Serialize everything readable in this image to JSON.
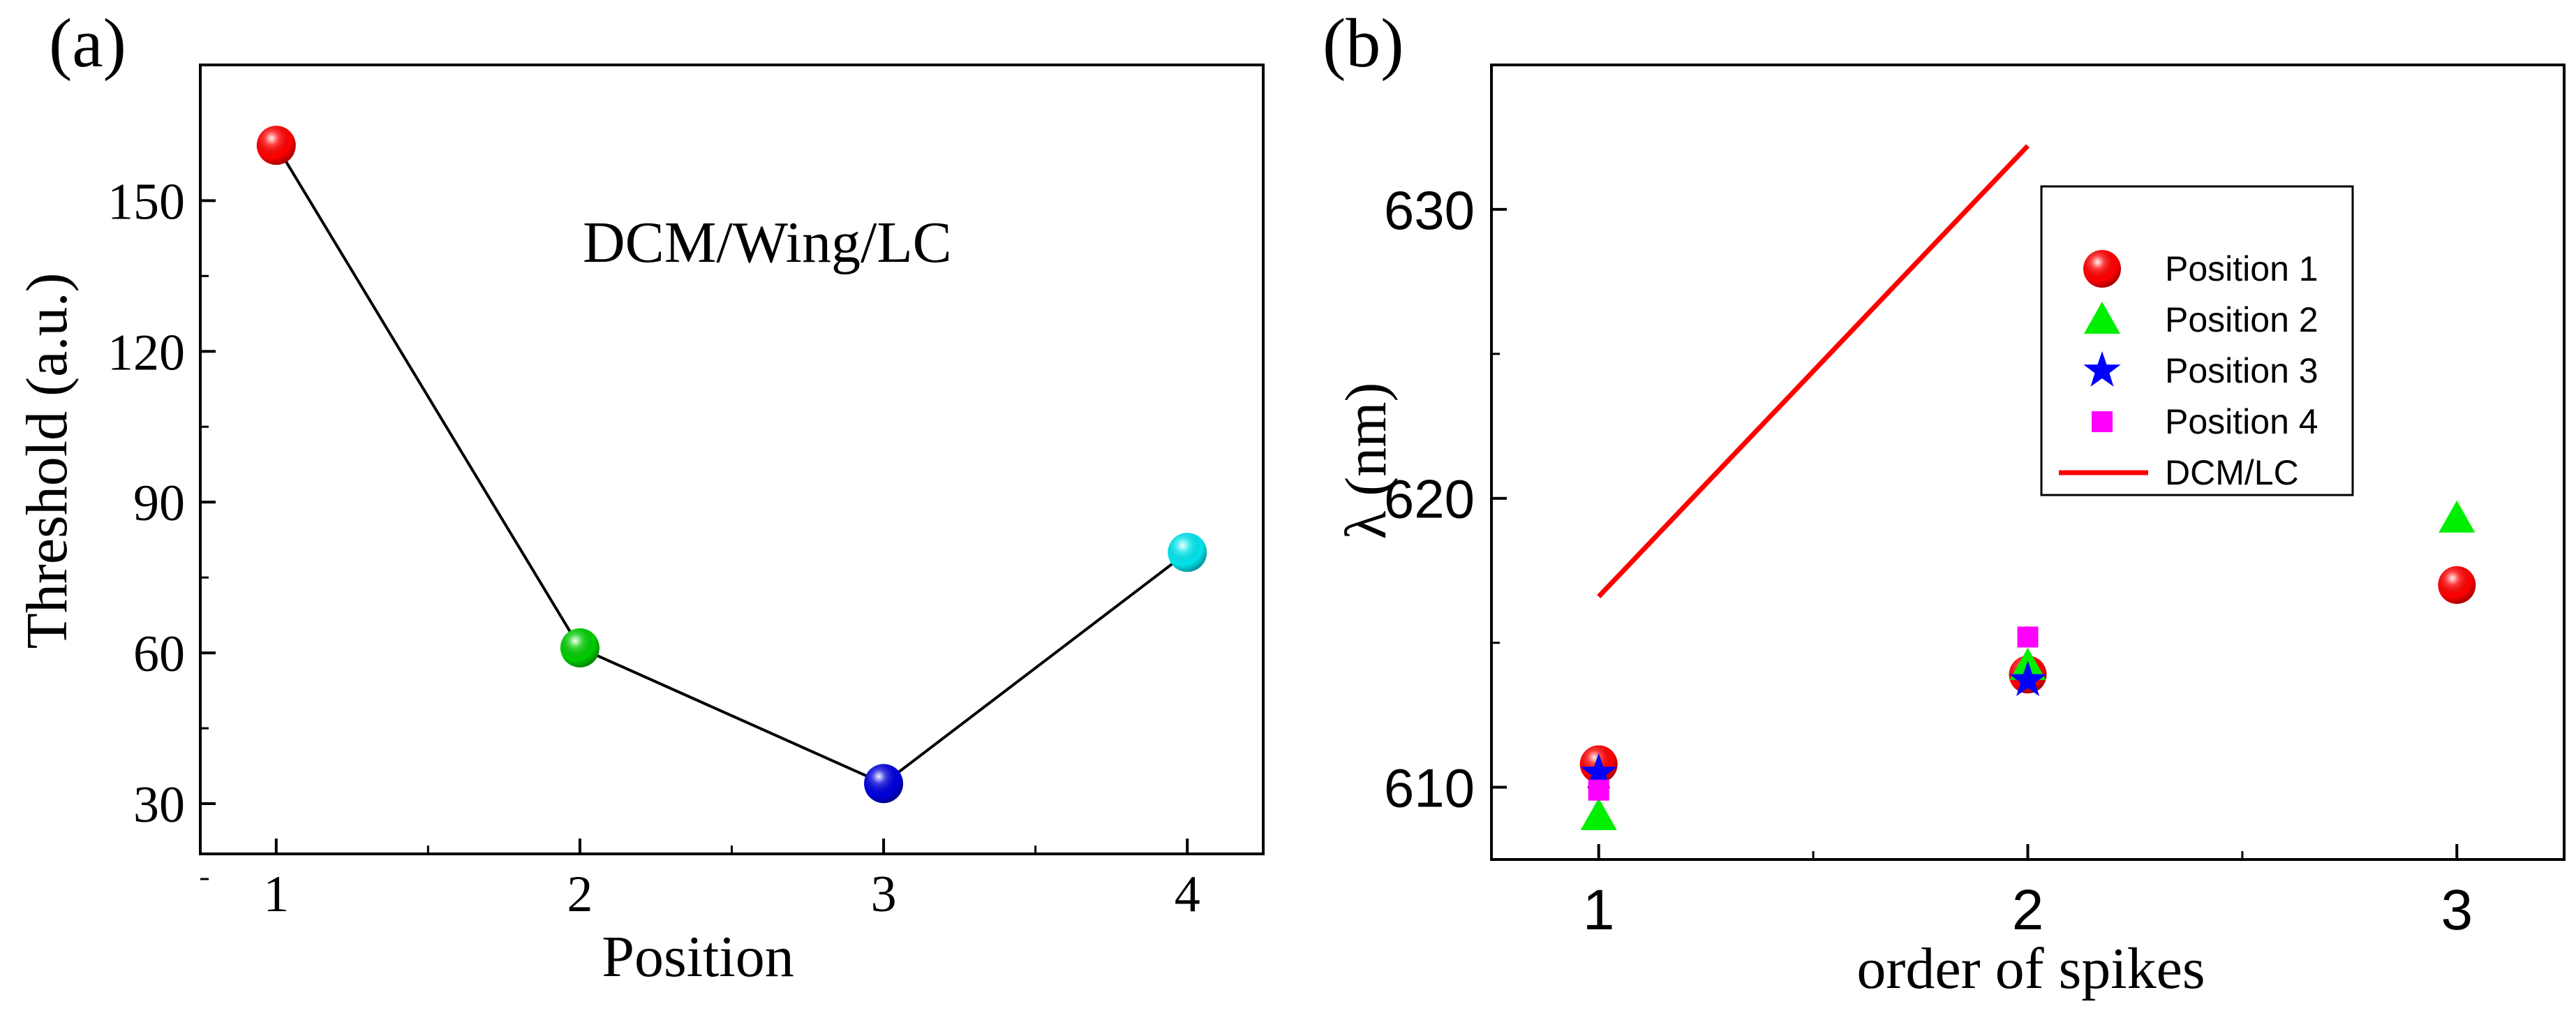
{
  "chart_data": [
    {
      "panel_label": "(a)",
      "type": "line",
      "xlabel": "Position",
      "ylabel": "Threshold (a.u.)",
      "annotation": "DCM/Wing/LC",
      "xlim": [
        0.75,
        4.25
      ],
      "ylim": [
        20,
        177
      ],
      "x_ticks": [
        1,
        2,
        3,
        4
      ],
      "x_tick_labels": [
        "1",
        "2",
        "3",
        "4"
      ],
      "y_ticks": [
        30,
        60,
        90,
        120,
        150
      ],
      "y_tick_labels": [
        "30",
        "60",
        "90",
        "120",
        "150"
      ],
      "x": [
        1,
        2,
        3,
        4
      ],
      "values": [
        161,
        61,
        34,
        80
      ],
      "point_colors": [
        "#ff0000",
        "#00cc00",
        "#0000dd",
        "#00e5ee"
      ],
      "line_color": "#000000",
      "grid": false
    },
    {
      "panel_label": "(b)",
      "type": "scatter",
      "xlabel": "order of spikes",
      "ylabel": "λ (nm)",
      "xlim": [
        0.75,
        3.25
      ],
      "ylim": [
        607.5,
        635
      ],
      "x_ticks": [
        1,
        2,
        3
      ],
      "x_tick_labels": [
        "1",
        "2",
        "3"
      ],
      "y_ticks": [
        610,
        620,
        630
      ],
      "y_tick_labels": [
        "610",
        "620",
        "630"
      ],
      "legend_position": "top-right",
      "series": [
        {
          "name": "Position 1",
          "marker": "sphere",
          "color": "#ff0000",
          "x": [
            1,
            2,
            3
          ],
          "y": [
            610.8,
            613.9,
            617.0
          ]
        },
        {
          "name": "Position 2",
          "marker": "triangle",
          "color": "#00ee00",
          "x": [
            1,
            2,
            3
          ],
          "y": [
            609.0,
            614.2,
            619.3
          ]
        },
        {
          "name": "Position 3",
          "marker": "star",
          "color": "#0000ff",
          "x": [
            1,
            2
          ],
          "y": [
            610.5,
            613.7
          ]
        },
        {
          "name": "Position 4",
          "marker": "square",
          "color": "#ff00ff",
          "x": [
            1,
            2
          ],
          "y": [
            609.9,
            615.2
          ]
        },
        {
          "name": "DCM/LC",
          "marker": "line",
          "color": "#ff0000",
          "x": [
            1,
            2
          ],
          "y": [
            616.6,
            632.2
          ]
        }
      ],
      "grid": false
    }
  ]
}
